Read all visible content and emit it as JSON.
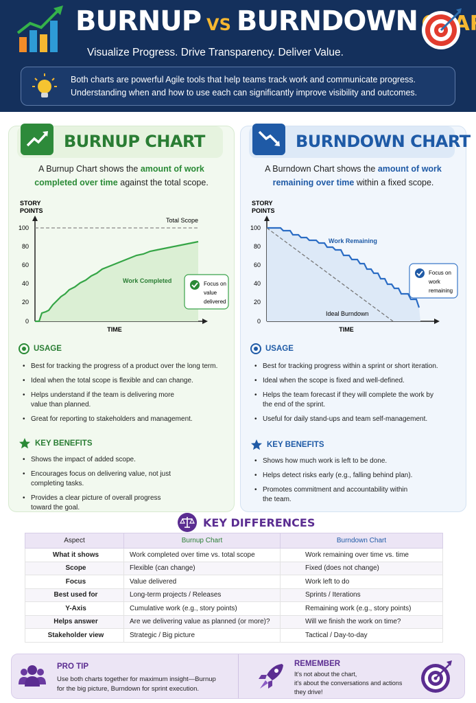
{
  "header": {
    "title_burnup": "BURNUP",
    "title_vs": "VS",
    "title_burndown": "BURNDOWN",
    "title_chart": "CHART",
    "subtitle": "Visualize Progress. Drive Transparency. Deliver Value.",
    "intro_line1": "Both charts are powerful Agile tools that help teams track work and communicate progress.",
    "intro_line2": "Understanding when and how to use each can significantly improve visibility and outcomes."
  },
  "colors": {
    "navy": "#14305c",
    "gold": "#f5b731",
    "green": "#2a7d34",
    "blue": "#1e5aa6",
    "purple": "#5b2d91"
  },
  "burnup": {
    "title": "BURNUP CHART",
    "desc_pre": "A Burnup Chart shows the ",
    "desc_hl": "amount of work completed over time",
    "desc_post": " against the total scope.",
    "chart": {
      "ylabel_1": "STORY",
      "ylabel_2": "POINTS",
      "xlabel": "TIME",
      "yticks": [
        "100",
        "80",
        "60",
        "40",
        "20",
        "0"
      ],
      "scope_label": "Total Scope",
      "series_label": "Work Completed",
      "callout_1": "Focus on",
      "callout_2": "value",
      "callout_3": "delivered"
    },
    "usage_title": "USAGE",
    "usage": [
      "Best for tracking the progress of a product over the long term.",
      "Ideal when the total scope is flexible and can change.",
      "Helps understand if the team is delivering more value than planned.",
      "Great for reporting to stakeholders and management."
    ],
    "benefits_title": "KEY BENEFITS",
    "benefits": [
      "Shows the impact of added scope.",
      "Encourages focus on delivering value, not just completing tasks.",
      "Provides a clear picture of overall progress toward the goal."
    ]
  },
  "burndown": {
    "title": "BURNDOWN CHART",
    "desc_pre": "A Burndown Chart shows the ",
    "desc_hl": "amount of work remaining over time",
    "desc_post": " within a fixed scope.",
    "chart": {
      "ylabel_1": "STORY",
      "ylabel_2": "POINTS",
      "xlabel": "TIME",
      "yticks": [
        "100",
        "80",
        "60",
        "40",
        "20",
        "0"
      ],
      "series_label": "Work Remaining",
      "ideal_label": "Ideal Burndown",
      "callout_1": "Focus on",
      "callout_2": "work",
      "callout_3": "remaining"
    },
    "usage_title": "USAGE",
    "usage": [
      "Best for tracking progress within a sprint or short iteration.",
      "Ideal when the scope is fixed and well-defined.",
      "Helps the team forecast if they will complete the work by the end of the sprint.",
      "Useful for daily stand-ups and team self-management."
    ],
    "benefits_title": "KEY BENEFITS",
    "benefits": [
      "Shows how much work is left to be done.",
      "Helps detect risks early (e.g., falling behind plan).",
      "Promotes commitment and accountability within the team."
    ]
  },
  "differences": {
    "title": "KEY DIFFERENCES",
    "headers": [
      "Aspect",
      "Burnup Chart",
      "Burndown Chart"
    ],
    "rows": [
      [
        "What it shows",
        "Work completed over time vs. total scope",
        "Work remaining over time vs. time"
      ],
      [
        "Scope",
        "Flexible (can change)",
        "Fixed (does not change)"
      ],
      [
        "Focus",
        "Value delivered",
        "Work left to do"
      ],
      [
        "Best used for",
        "Long-term projects / Releases",
        "Sprints / Iterations"
      ],
      [
        "Y-Axis",
        "Cumulative work (e.g., story points)",
        "Remaining work (e.g., story points)"
      ],
      [
        "Helps answer",
        "Are we delivering value as planned (or more)?",
        "Will we finish the work on time?"
      ],
      [
        "Stakeholder view",
        "Strategic / Big picture",
        "Tactical / Day-to-day"
      ]
    ]
  },
  "pro_tip": {
    "title": "PRO TIP",
    "line1": "Use both charts together for maximum insight—Burnup",
    "line2": "for the big picture, Burndown for sprint execution."
  },
  "remember": {
    "title": "REMEMBER",
    "line1": "It's not about the chart,",
    "line2": "it's about the conversations and actions",
    "line3": "they drive!"
  }
}
